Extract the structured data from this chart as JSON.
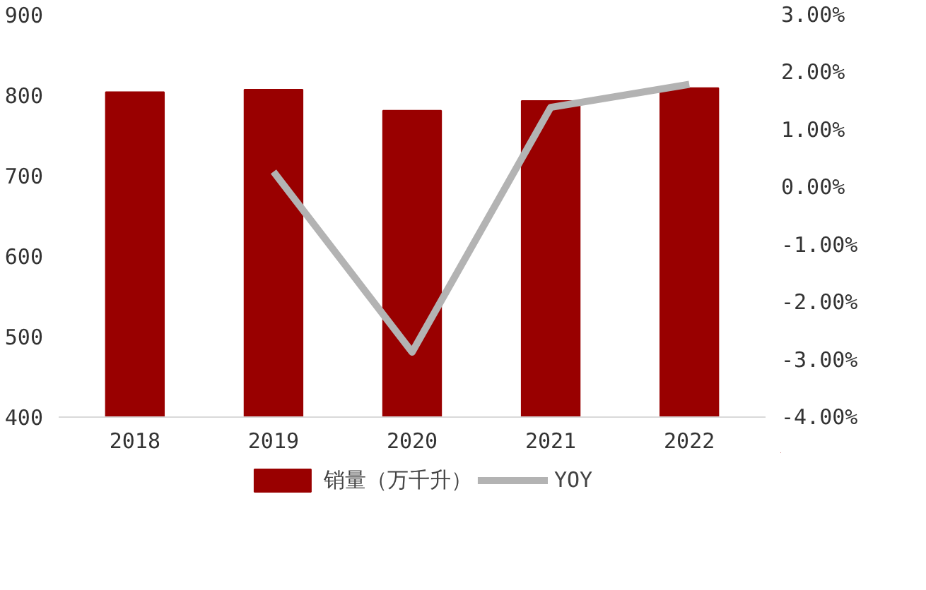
{
  "chart_data": {
    "type": "bar",
    "categories": [
      "2018",
      "2019",
      "2020",
      "2021",
      "2022"
    ],
    "series": [
      {
        "name": "销量（万千升）",
        "color": "#990000",
        "values": [
          804,
          807,
          781,
          793,
          809
        ]
      },
      {
        "name": "YOY",
        "type": "line",
        "axis": "y2",
        "color": "#b3b3b3",
        "values": [
          null,
          0.27,
          -2.87,
          1.39,
          1.79
        ]
      }
    ],
    "ylim": [
      400,
      900
    ],
    "yticks": [
      400,
      500,
      600,
      700,
      800,
      900
    ],
    "y2lim": [
      -4,
      3
    ],
    "y2ticks": [
      {
        "value": -4,
        "label": "-4.00%"
      },
      {
        "value": -3,
        "label": "-3.00%"
      },
      {
        "value": -2,
        "label": "-2.00%"
      },
      {
        "value": -1,
        "label": "-1.00%"
      },
      {
        "value": 0,
        "label": "0.00%"
      },
      {
        "value": 1,
        "label": "1.00%"
      },
      {
        "value": 2,
        "label": "2.00%"
      },
      {
        "value": 3,
        "label": "3.00%"
      }
    ],
    "legend": "bottom",
    "grid": false,
    "marker": "none",
    "line_style": "solid"
  }
}
